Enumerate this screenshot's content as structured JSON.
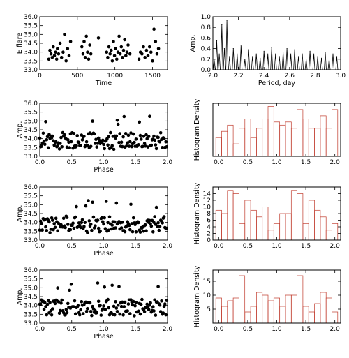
{
  "chart_data": [
    {
      "type": "scatter",
      "xlabel": "Time",
      "ylabel": "E flare",
      "xlim": [
        0,
        1700
      ],
      "ylim": [
        33.0,
        36.0
      ],
      "xticks": [
        0,
        500,
        1000,
        1500
      ],
      "yticks": [
        33.0,
        33.5,
        34.0,
        34.5,
        35.0,
        35.5,
        36.0
      ],
      "points": [
        [
          120,
          33.6
        ],
        [
          135,
          34.1
        ],
        [
          150,
          33.9
        ],
        [
          165,
          33.7
        ],
        [
          180,
          34.3
        ],
        [
          195,
          33.8
        ],
        [
          210,
          34.0
        ],
        [
          225,
          33.6
        ],
        [
          235,
          34.2
        ],
        [
          250,
          33.9
        ],
        [
          270,
          34.5
        ],
        [
          290,
          33.7
        ],
        [
          310,
          34.0
        ],
        [
          330,
          35.0
        ],
        [
          350,
          33.5
        ],
        [
          370,
          34.2
        ],
        [
          390,
          33.8
        ],
        [
          410,
          34.6
        ],
        [
          560,
          34.3
        ],
        [
          575,
          33.9
        ],
        [
          590,
          34.6
        ],
        [
          605,
          33.7
        ],
        [
          620,
          34.9
        ],
        [
          635,
          34.0
        ],
        [
          650,
          33.6
        ],
        [
          665,
          34.4
        ],
        [
          680,
          33.9
        ],
        [
          780,
          34.8
        ],
        [
          890,
          34.0
        ],
        [
          905,
          33.7
        ],
        [
          920,
          34.3
        ],
        [
          935,
          33.9
        ],
        [
          950,
          34.1
        ],
        [
          965,
          33.5
        ],
        [
          980,
          34.6
        ],
        [
          995,
          33.8
        ],
        [
          1010,
          34.2
        ],
        [
          1025,
          33.6
        ],
        [
          1040,
          34.0
        ],
        [
          1055,
          34.9
        ],
        [
          1070,
          33.9
        ],
        [
          1085,
          34.3
        ],
        [
          1100,
          33.7
        ],
        [
          1115,
          34.1
        ],
        [
          1130,
          34.7
        ],
        [
          1145,
          33.8
        ],
        [
          1160,
          34.0
        ],
        [
          1175,
          34.4
        ],
        [
          1200,
          33.9
        ],
        [
          1320,
          33.6
        ],
        [
          1340,
          34.0
        ],
        [
          1360,
          33.9
        ],
        [
          1380,
          34.3
        ],
        [
          1400,
          33.7
        ],
        [
          1420,
          34.1
        ],
        [
          1440,
          33.8
        ],
        [
          1460,
          34.3
        ],
        [
          1480,
          34.0
        ],
        [
          1500,
          33.5
        ],
        [
          1520,
          35.3
        ],
        [
          1540,
          34.6
        ],
        [
          1560,
          33.9
        ],
        [
          1580,
          34.2
        ]
      ]
    },
    {
      "type": "line",
      "xlabel": "Period, day",
      "ylabel": "Amp.",
      "xlim": [
        2.0,
        3.0
      ],
      "ylim": [
        0.0,
        1.0
      ],
      "xticks": [
        2.0,
        2.2,
        2.4,
        2.6,
        2.8,
        3.0
      ],
      "yticks": [
        0.0,
        0.2,
        0.4,
        0.6,
        0.8,
        1.0
      ],
      "peaks": [
        [
          2.01,
          0.2
        ],
        [
          2.03,
          0.55
        ],
        [
          2.05,
          0.3
        ],
        [
          2.07,
          0.85
        ],
        [
          2.09,
          0.4
        ],
        [
          2.11,
          0.93
        ],
        [
          2.13,
          0.25
        ],
        [
          2.16,
          0.4
        ],
        [
          2.19,
          0.3
        ],
        [
          2.22,
          0.45
        ],
        [
          2.25,
          0.2
        ],
        [
          2.28,
          0.38
        ],
        [
          2.31,
          0.25
        ],
        [
          2.34,
          0.3
        ],
        [
          2.37,
          0.22
        ],
        [
          2.4,
          0.35
        ],
        [
          2.43,
          0.3
        ],
        [
          2.46,
          0.42
        ],
        [
          2.49,
          0.3
        ],
        [
          2.52,
          0.25
        ],
        [
          2.55,
          0.33
        ],
        [
          2.58,
          0.4
        ],
        [
          2.61,
          0.3
        ],
        [
          2.64,
          0.38
        ],
        [
          2.67,
          0.25
        ],
        [
          2.7,
          0.3
        ],
        [
          2.73,
          0.2
        ],
        [
          2.76,
          0.35
        ],
        [
          2.79,
          0.3
        ],
        [
          2.82,
          0.25
        ],
        [
          2.85,
          0.22
        ],
        [
          2.88,
          0.33
        ],
        [
          2.91,
          0.2
        ],
        [
          2.94,
          0.3
        ],
        [
          2.97,
          0.25
        ]
      ]
    },
    {
      "type": "scatter",
      "xlabel": "Phase",
      "ylabel": "Amp.",
      "xlim": [
        0.0,
        2.0
      ],
      "ylim": [
        33.0,
        36.0
      ],
      "xticks": [
        0.0,
        0.5,
        1.0,
        1.5,
        2.0
      ],
      "yticks": [
        33.0,
        33.5,
        34.0,
        34.5,
        35.0,
        35.5,
        36.0
      ],
      "seed": 11
    },
    {
      "type": "bar",
      "ylabel": "Histogram Density",
      "xlim": [
        -0.1,
        2.1
      ],
      "ylim": [
        0,
        17
      ],
      "xticks": [
        0.0,
        0.5,
        1.0,
        1.5,
        2.0
      ],
      "bin_width": 0.1,
      "centers": [
        0.0,
        0.1,
        0.2,
        0.3,
        0.4,
        0.5,
        0.6,
        0.7,
        0.8,
        0.9,
        1.0,
        1.1,
        1.2,
        1.3,
        1.4,
        1.5,
        1.6,
        1.7,
        1.8,
        1.9,
        2.0
      ],
      "values": [
        6,
        8,
        10,
        4,
        9,
        12,
        6,
        9,
        12,
        16,
        11,
        10,
        11,
        9,
        15,
        12,
        9,
        9,
        13,
        9,
        15
      ]
    },
    {
      "type": "scatter",
      "xlabel": "Phase",
      "ylabel": "Amp.",
      "xlim": [
        0.0,
        2.0
      ],
      "ylim": [
        33.0,
        36.0
      ],
      "xticks": [
        0.0,
        0.5,
        1.0,
        1.5,
        2.0
      ],
      "yticks": [
        33.0,
        33.5,
        34.0,
        34.5,
        35.0,
        35.5,
        36.0
      ],
      "seed": 23
    },
    {
      "type": "bar",
      "ylabel": "Histogram Density",
      "xlim": [
        -0.1,
        2.1
      ],
      "ylim": [
        0,
        16
      ],
      "yticks": [
        0,
        2,
        4,
        6,
        8,
        10,
        12,
        14
      ],
      "xticks": [
        0.0,
        0.5,
        1.0,
        1.5,
        2.0
      ],
      "bin_width": 0.1,
      "centers": [
        0.0,
        0.1,
        0.2,
        0.3,
        0.4,
        0.5,
        0.6,
        0.7,
        0.8,
        0.9,
        1.0,
        1.1,
        1.2,
        1.3,
        1.4,
        1.5,
        1.6,
        1.7,
        1.8,
        1.9,
        2.0
      ],
      "values": [
        9,
        8,
        15,
        14,
        5,
        12,
        9,
        7,
        10,
        3,
        5,
        8,
        8,
        15,
        14,
        5,
        12,
        9,
        7,
        3,
        5
      ]
    },
    {
      "type": "scatter",
      "xlabel": "Phase",
      "ylabel": "Amp.",
      "xlim": [
        0.0,
        2.0
      ],
      "ylim": [
        33.0,
        36.0
      ],
      "xticks": [
        0.0,
        0.5,
        1.0,
        1.5,
        2.0
      ],
      "yticks": [
        33.0,
        33.5,
        34.0,
        34.5,
        35.0,
        35.5,
        36.0
      ],
      "seed": 37
    },
    {
      "type": "bar",
      "ylabel": "Histogram Density",
      "xlim": [
        -0.1,
        2.1
      ],
      "ylim": [
        0,
        19
      ],
      "yticks": [
        5,
        10,
        15
      ],
      "xticks": [
        0.0,
        0.5,
        1.0,
        1.5,
        2.0
      ],
      "bin_width": 0.1,
      "centers": [
        0.0,
        0.1,
        0.2,
        0.3,
        0.4,
        0.5,
        0.6,
        0.7,
        0.8,
        0.9,
        1.0,
        1.1,
        1.2,
        1.3,
        1.4,
        1.5,
        1.6,
        1.7,
        1.8,
        1.9,
        2.0
      ],
      "values": [
        9,
        6,
        8,
        9,
        17,
        4,
        6,
        11,
        10,
        8,
        9,
        6,
        10,
        10,
        17,
        6,
        4,
        7,
        11,
        9,
        4
      ]
    }
  ]
}
